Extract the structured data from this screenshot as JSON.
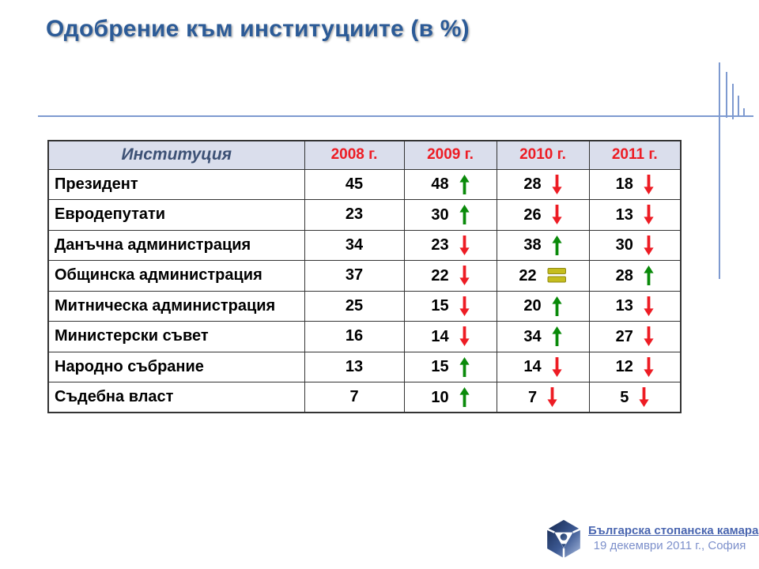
{
  "title": "Одобрение към институциите (в %)",
  "table": {
    "header": {
      "institution": "Институция",
      "years": [
        "2008 г.",
        "2009 г.",
        "2010 г.",
        "2011 г."
      ]
    },
    "rows": [
      {
        "institution": "Президент",
        "values": [
          {
            "v": "45",
            "trend": "none"
          },
          {
            "v": "48",
            "trend": "up"
          },
          {
            "v": "28",
            "trend": "down"
          },
          {
            "v": "18",
            "trend": "down"
          }
        ]
      },
      {
        "institution": "Евродепутати",
        "values": [
          {
            "v": "23",
            "trend": "none"
          },
          {
            "v": "30",
            "trend": "up"
          },
          {
            "v": "26",
            "trend": "down"
          },
          {
            "v": "13",
            "trend": "down"
          }
        ]
      },
      {
        "institution": "Данъчна администрация",
        "values": [
          {
            "v": "34",
            "trend": "none"
          },
          {
            "v": "23",
            "trend": "down"
          },
          {
            "v": "38",
            "trend": "up"
          },
          {
            "v": "30",
            "trend": "down"
          }
        ]
      },
      {
        "institution": "Общинска администрация",
        "values": [
          {
            "v": "37",
            "trend": "none"
          },
          {
            "v": "22",
            "trend": "down"
          },
          {
            "v": "22",
            "trend": "equal"
          },
          {
            "v": "28",
            "trend": "up"
          }
        ]
      },
      {
        "institution": "Митническа администрация",
        "values": [
          {
            "v": "25",
            "trend": "none"
          },
          {
            "v": "15",
            "trend": "down"
          },
          {
            "v": "20",
            "trend": "up"
          },
          {
            "v": "13",
            "trend": "down"
          }
        ]
      },
      {
        "institution": "Министерски съвет",
        "values": [
          {
            "v": "16",
            "trend": "none"
          },
          {
            "v": "14",
            "trend": "down"
          },
          {
            "v": "34",
            "trend": "up"
          },
          {
            "v": "27",
            "trend": "down"
          }
        ]
      },
      {
        "institution": "Народно събрание",
        "values": [
          {
            "v": "13",
            "trend": "none"
          },
          {
            "v": "15",
            "trend": "up"
          },
          {
            "v": "14",
            "trend": "down"
          },
          {
            "v": "12",
            "trend": "down"
          }
        ]
      },
      {
        "institution": "Съдебна власт",
        "values": [
          {
            "v": "7",
            "trend": "none"
          },
          {
            "v": "10",
            "trend": "up"
          },
          {
            "v": "7",
            "trend": "down"
          },
          {
            "v": "5",
            "trend": "down"
          }
        ]
      }
    ]
  },
  "footer": {
    "org": "Българска стопанска камара",
    "date_location": "19 декември 2011 г., София"
  },
  "colors": {
    "title_blue": "#2c5b97",
    "rule_blue": "#7e9ad0",
    "header_bg": "#dadeec",
    "header_institution_text": "#3d5175",
    "year_red": "#ed1c24",
    "up_green": "#0a8a0a",
    "down_red": "#ed1c24",
    "equal_fill": "#c5bd1e",
    "equal_stroke": "#8f8a15",
    "table_border": "#333333",
    "link_blue": "#4a66b0",
    "date_blue": "#7d90cb"
  },
  "icons": {
    "up": "trend-up-icon",
    "down": "trend-down-icon",
    "equal": "trend-equal-icon",
    "logo": "bia-logo"
  }
}
